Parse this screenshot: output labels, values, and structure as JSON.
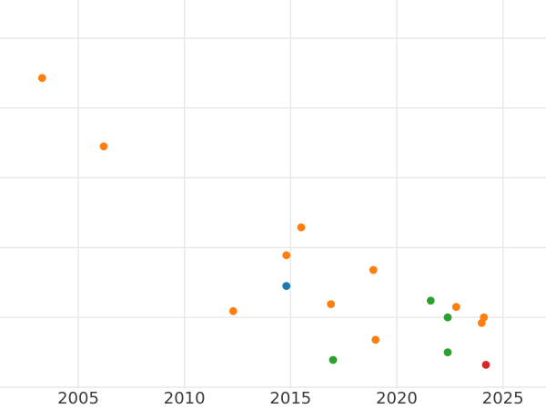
{
  "chart_data": {
    "type": "scatter",
    "title": "",
    "xlabel": "",
    "ylabel": "",
    "grid": true,
    "legend": "none",
    "x_tick_labels": [
      "2005",
      "2010",
      "2015",
      "2020",
      "2025"
    ],
    "x_tick_years": [
      2005,
      2010,
      2015,
      2020,
      2025
    ],
    "x_range_visible_years": [
      2001.3,
      2027.0
    ],
    "y_axis_note": "y-axis tick labels are not visible in the screenshot (cropped at left edge); y values are expressed in gridline units above the bottom gridline",
    "y_gridline_units": [
      0,
      1,
      2,
      3,
      4,
      5
    ],
    "series": [
      {
        "name": "orange",
        "color": "#ff7f0e",
        "points": [
          [
            2003.3,
            4.43
          ],
          [
            2006.2,
            3.45
          ],
          [
            2012.3,
            1.09
          ],
          [
            2014.8,
            1.89
          ],
          [
            2015.5,
            2.29
          ],
          [
            2016.9,
            1.19
          ],
          [
            2018.9,
            1.68
          ],
          [
            2019.0,
            0.68
          ],
          [
            2022.8,
            1.15
          ],
          [
            2024.0,
            0.92
          ],
          [
            2024.1,
            1.0
          ]
        ]
      },
      {
        "name": "blue",
        "color": "#1f77b4",
        "points": [
          [
            2014.8,
            1.45
          ]
        ]
      },
      {
        "name": "green",
        "color": "#2ca02c",
        "points": [
          [
            2017.0,
            0.39
          ],
          [
            2021.6,
            1.24
          ],
          [
            2022.4,
            1.0
          ],
          [
            2022.4,
            0.5
          ]
        ]
      },
      {
        "name": "red",
        "color": "#d62728",
        "points": [
          [
            2024.2,
            0.32
          ]
        ]
      }
    ]
  }
}
